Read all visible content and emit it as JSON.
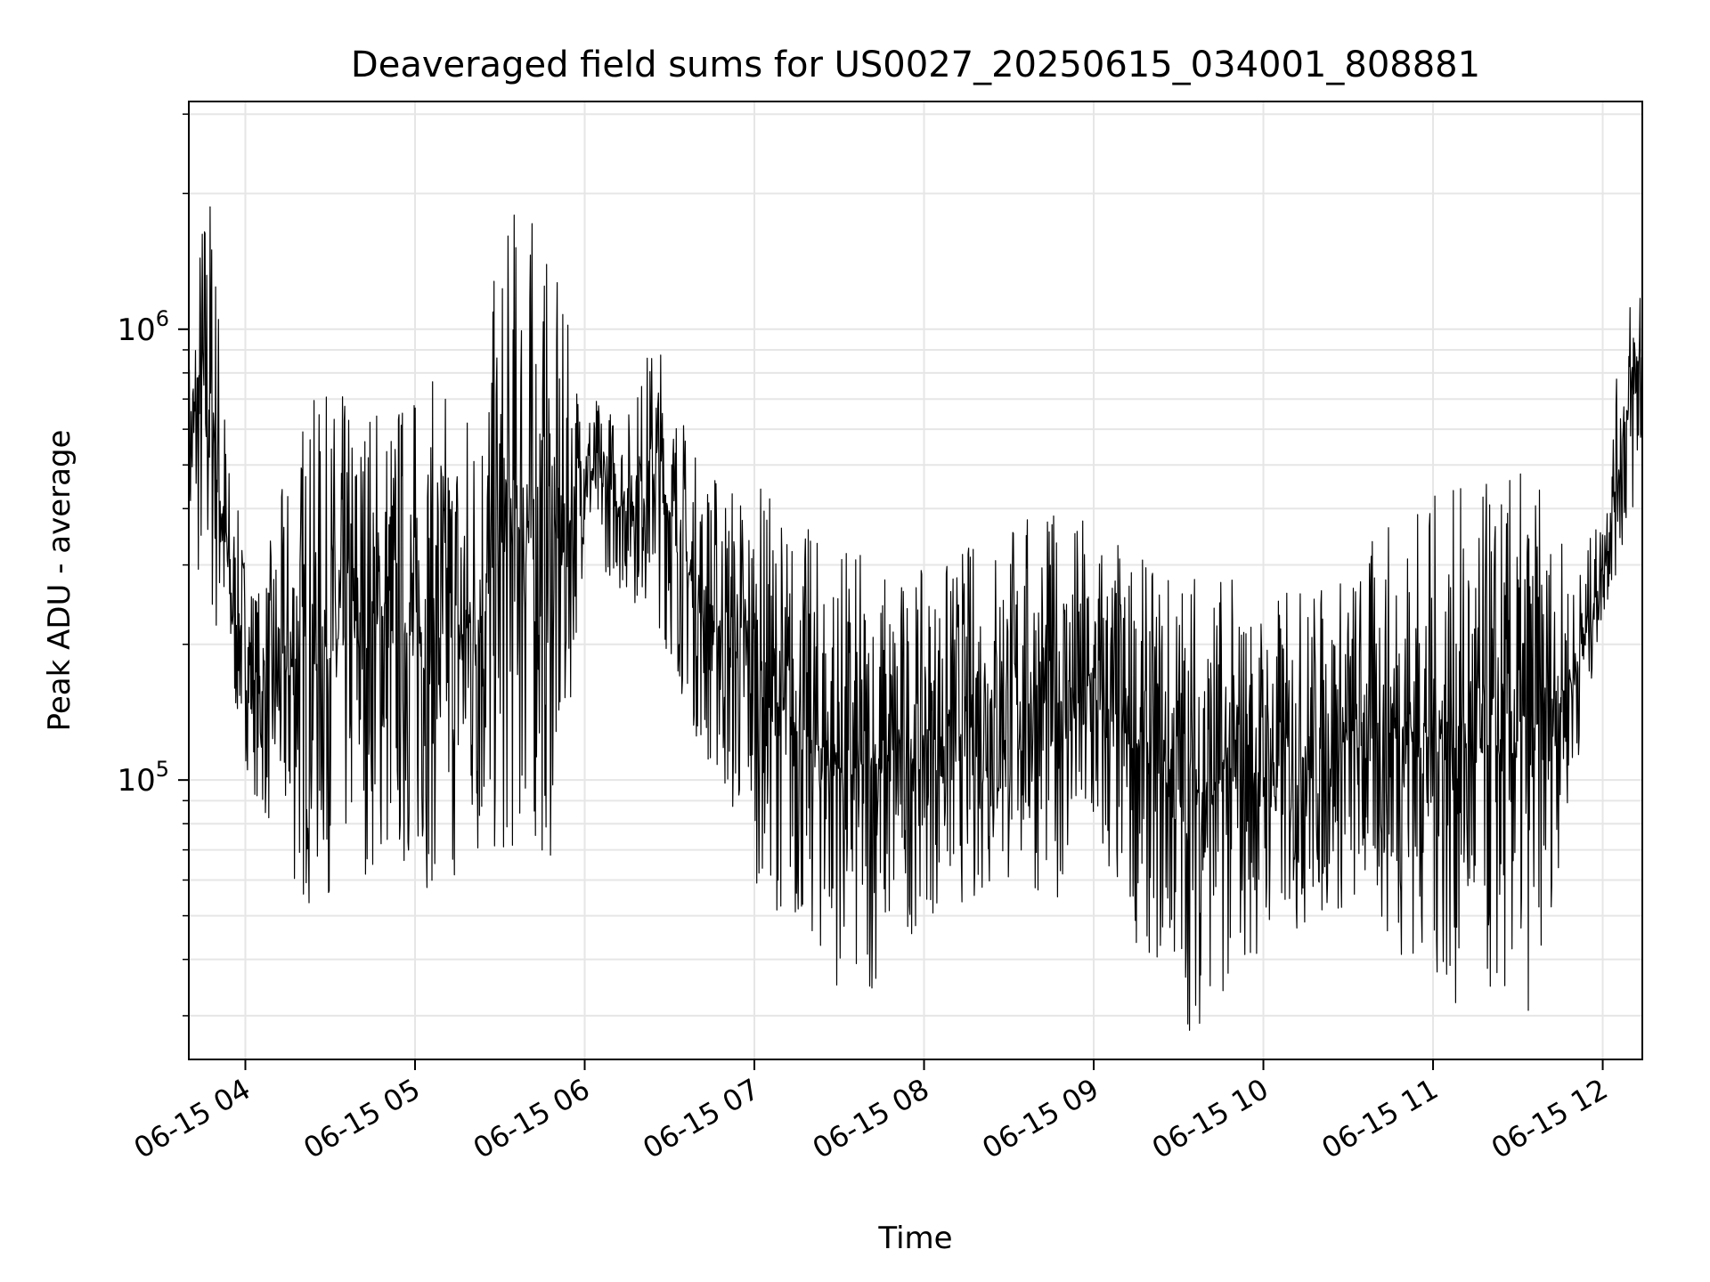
{
  "chart_data": {
    "type": "line",
    "title": "Deaveraged field sums for US0027_20250615_034001_808881",
    "xlabel": "Time",
    "ylabel": "Peak ADU - average",
    "yscale": "log",
    "grid": true,
    "legend": "none",
    "xlim": [
      "2025-06-15 03:40",
      "2025-06-15 12:14"
    ],
    "ylim": [
      24000,
      3200000
    ],
    "x_ticks": [
      {
        "label": "06-15 04",
        "time": "2025-06-15 04:00"
      },
      {
        "label": "06-15 05",
        "time": "2025-06-15 05:00"
      },
      {
        "label": "06-15 06",
        "time": "2025-06-15 06:00"
      },
      {
        "label": "06-15 07",
        "time": "2025-06-15 07:00"
      },
      {
        "label": "06-15 08",
        "time": "2025-06-15 08:00"
      },
      {
        "label": "06-15 09",
        "time": "2025-06-15 09:00"
      },
      {
        "label": "06-15 10",
        "time": "2025-06-15 10:00"
      },
      {
        "label": "06-15 11",
        "time": "2025-06-15 11:00"
      },
      {
        "label": "06-15 12",
        "time": "2025-06-15 12:00"
      }
    ],
    "y_major_ticks": [
      {
        "base": "10",
        "exp": "5",
        "value": 100000
      },
      {
        "base": "10",
        "exp": "6",
        "value": 1000000
      }
    ],
    "series": [
      {
        "color": "#000000",
        "envelope": [
          {
            "time": "2025-06-15 03:40",
            "low": 300000,
            "high": 900000
          },
          {
            "time": "2025-06-15 03:45",
            "low": 230000,
            "high": 2200000
          },
          {
            "time": "2025-06-15 03:48",
            "low": 200000,
            "high": 2400000
          },
          {
            "time": "2025-06-15 03:55",
            "low": 140000,
            "high": 450000
          },
          {
            "time": "2025-06-15 04:05",
            "low": 85000,
            "high": 270000
          },
          {
            "time": "2025-06-15 04:20",
            "low": 50000,
            "high": 700000
          },
          {
            "time": "2025-06-15 04:40",
            "low": 62000,
            "high": 760000
          },
          {
            "time": "2025-06-15 05:00",
            "low": 58000,
            "high": 780000
          },
          {
            "time": "2025-06-15 05:20",
            "low": 55000,
            "high": 800000
          },
          {
            "time": "2025-06-15 05:37",
            "low": 65000,
            "high": 2300000
          },
          {
            "time": "2025-06-15 05:50",
            "low": 65000,
            "high": 1300000
          },
          {
            "time": "2025-06-15 06:00",
            "low": 330000,
            "high": 740000
          },
          {
            "time": "2025-06-15 06:15",
            "low": 250000,
            "high": 660000
          },
          {
            "time": "2025-06-15 06:25",
            "low": 230000,
            "high": 1050000
          },
          {
            "time": "2025-06-15 06:40",
            "low": 120000,
            "high": 520000
          },
          {
            "time": "2025-06-15 07:00",
            "low": 60000,
            "high": 480000
          },
          {
            "time": "2025-06-15 07:15",
            "low": 45000,
            "high": 380000
          },
          {
            "time": "2025-06-15 07:37",
            "low": 30000,
            "high": 330000
          },
          {
            "time": "2025-06-15 08:00",
            "low": 50000,
            "high": 290000
          },
          {
            "time": "2025-06-15 08:30",
            "low": 55000,
            "high": 400000
          },
          {
            "time": "2025-06-15 09:00",
            "low": 55000,
            "high": 400000
          },
          {
            "time": "2025-06-15 09:20",
            "low": 40000,
            "high": 300000
          },
          {
            "time": "2025-06-15 09:35",
            "low": 27000,
            "high": 330000
          },
          {
            "time": "2025-06-15 10:00",
            "low": 42000,
            "high": 260000
          },
          {
            "time": "2025-06-15 10:30",
            "low": 50000,
            "high": 300000
          },
          {
            "time": "2025-06-15 10:50",
            "low": 40000,
            "high": 420000
          },
          {
            "time": "2025-06-15 11:10",
            "low": 30000,
            "high": 450000
          },
          {
            "time": "2025-06-15 11:35",
            "low": 30000,
            "high": 500000
          },
          {
            "time": "2025-06-15 11:50",
            "low": 100000,
            "high": 290000
          },
          {
            "time": "2025-06-15 12:00",
            "low": 220000,
            "high": 400000
          },
          {
            "time": "2025-06-15 12:06",
            "low": 300000,
            "high": 900000
          },
          {
            "time": "2025-06-15 12:14",
            "low": 400000,
            "high": 1900000
          }
        ]
      }
    ]
  }
}
